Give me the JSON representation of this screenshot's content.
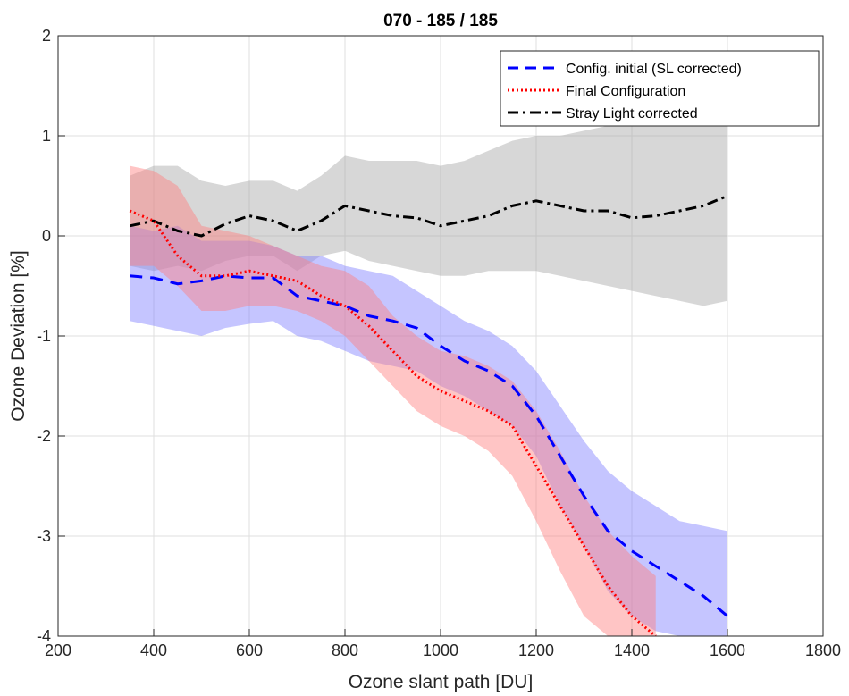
{
  "chart_data": {
    "type": "line",
    "title": "070 - 185 / 185",
    "xlabel": "Ozone slant path [DU]",
    "ylabel": "Ozone Deviation [%]",
    "xlim": [
      200,
      1800
    ],
    "ylim": [
      -4,
      2
    ],
    "xticks": [
      200,
      400,
      600,
      800,
      1000,
      1200,
      1400,
      1600,
      1800
    ],
    "yticks": [
      -4,
      -3,
      -2,
      -1,
      0,
      1,
      2
    ],
    "grid": true,
    "legend_position": "top-right",
    "series": [
      {
        "name": "Config. initial (SL corrected)",
        "color": "#0000ff",
        "line_style": "dashed",
        "band_color": "#7f7fff",
        "x": [
          350,
          400,
          450,
          500,
          550,
          600,
          650,
          700,
          750,
          800,
          850,
          900,
          950,
          1000,
          1050,
          1100,
          1150,
          1200,
          1250,
          1300,
          1350,
          1400,
          1450,
          1500,
          1550,
          1600
        ],
        "y": [
          -0.4,
          -0.42,
          -0.48,
          -0.45,
          -0.4,
          -0.42,
          -0.42,
          -0.6,
          -0.65,
          -0.7,
          -0.8,
          -0.85,
          -0.92,
          -1.1,
          -1.25,
          -1.35,
          -1.5,
          -1.8,
          -2.2,
          -2.6,
          -2.95,
          -3.15,
          -3.3,
          -3.45,
          -3.6,
          -3.8
        ],
        "band_upper": [
          0.1,
          0.05,
          0.1,
          -0.05,
          -0.05,
          -0.05,
          -0.1,
          -0.2,
          -0.2,
          -0.3,
          -0.35,
          -0.4,
          -0.55,
          -0.7,
          -0.85,
          -0.95,
          -1.1,
          -1.35,
          -1.7,
          -2.05,
          -2.35,
          -2.55,
          -2.7,
          -2.85,
          -2.9,
          -2.95
        ],
        "band_lower": [
          -0.85,
          -0.9,
          -0.95,
          -1.0,
          -0.92,
          -0.88,
          -0.85,
          -1.0,
          -1.05,
          -1.15,
          -1.25,
          -1.3,
          -1.35,
          -1.5,
          -1.6,
          -1.75,
          -1.9,
          -2.2,
          -2.7,
          -3.1,
          -3.55,
          -3.8,
          -3.95,
          -4.0,
          -4.0,
          -4.0
        ]
      },
      {
        "name": "Final Configuration",
        "color": "#ff0000",
        "line_style": "dotted",
        "band_color": "#ff7f7f",
        "x": [
          350,
          400,
          450,
          500,
          550,
          600,
          650,
          700,
          750,
          800,
          850,
          900,
          950,
          1000,
          1050,
          1100,
          1150,
          1200,
          1250,
          1300,
          1350,
          1400,
          1450
        ],
        "y": [
          0.25,
          0.15,
          -0.2,
          -0.4,
          -0.4,
          -0.35,
          -0.4,
          -0.45,
          -0.6,
          -0.7,
          -0.9,
          -1.15,
          -1.4,
          -1.55,
          -1.65,
          -1.75,
          -1.9,
          -2.3,
          -2.7,
          -3.1,
          -3.5,
          -3.8,
          -4.0
        ],
        "band_upper": [
          0.7,
          0.65,
          0.5,
          0.1,
          0.05,
          0.0,
          -0.1,
          -0.2,
          -0.3,
          -0.35,
          -0.5,
          -0.8,
          -1.0,
          -1.15,
          -1.2,
          -1.3,
          -1.45,
          -1.75,
          -2.15,
          -2.6,
          -2.95,
          -3.2,
          -3.4
        ],
        "band_lower": [
          -0.3,
          -0.3,
          -0.5,
          -0.75,
          -0.75,
          -0.7,
          -0.7,
          -0.75,
          -0.85,
          -1.0,
          -1.25,
          -1.5,
          -1.75,
          -1.9,
          -2.0,
          -2.15,
          -2.4,
          -2.85,
          -3.35,
          -3.8,
          -4.0,
          -4.0,
          -4.0
        ]
      },
      {
        "name": "Stray Light corrected",
        "color": "#000000",
        "line_style": "dashdot",
        "band_color": "#a6a6a6",
        "x": [
          350,
          400,
          450,
          500,
          550,
          600,
          650,
          700,
          750,
          800,
          850,
          900,
          950,
          1000,
          1050,
          1100,
          1150,
          1200,
          1250,
          1300,
          1350,
          1400,
          1450,
          1500,
          1550,
          1600
        ],
        "y": [
          0.1,
          0.15,
          0.05,
          0.0,
          0.12,
          0.2,
          0.15,
          0.05,
          0.15,
          0.3,
          0.25,
          0.2,
          0.18,
          0.1,
          0.15,
          0.2,
          0.3,
          0.35,
          0.3,
          0.25,
          0.25,
          0.18,
          0.2,
          0.25,
          0.3,
          0.4
        ],
        "band_upper": [
          0.6,
          0.7,
          0.7,
          0.55,
          0.5,
          0.55,
          0.55,
          0.45,
          0.6,
          0.8,
          0.75,
          0.75,
          0.75,
          0.7,
          0.75,
          0.85,
          0.95,
          1.0,
          1.0,
          1.05,
          1.1,
          1.15,
          1.2,
          1.3,
          1.3,
          1.35
        ],
        "band_lower": [
          -0.3,
          -0.35,
          -0.3,
          -0.35,
          -0.25,
          -0.2,
          -0.2,
          -0.35,
          -0.2,
          -0.15,
          -0.25,
          -0.3,
          -0.35,
          -0.4,
          -0.4,
          -0.35,
          -0.35,
          -0.35,
          -0.4,
          -0.45,
          -0.5,
          -0.55,
          -0.6,
          -0.65,
          -0.7,
          -0.65
        ]
      }
    ]
  }
}
